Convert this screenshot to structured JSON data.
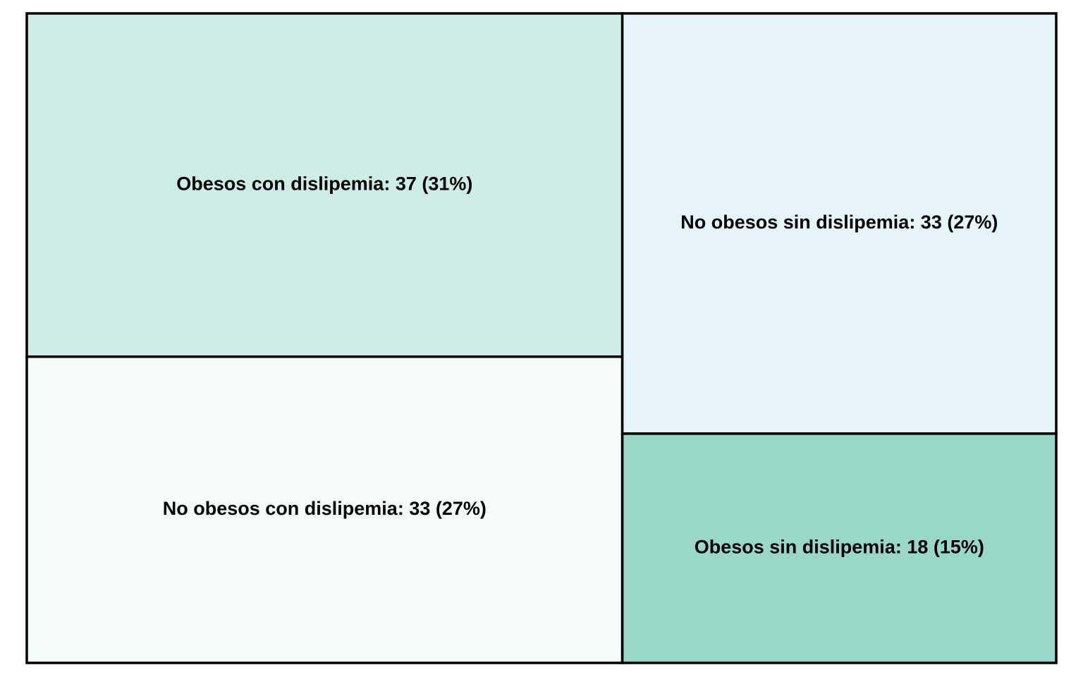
{
  "chart_data": {
    "type": "treemap",
    "cells": [
      {
        "name": "Obesos con dislipemia",
        "value": 37,
        "percent": 31,
        "label": "Obesos con dislipemia: 37 (31%)",
        "color": "#ccece5"
      },
      {
        "name": "No obesos con dislipemia",
        "value": 33,
        "percent": 27,
        "label": "No obesos con dislipemia: 33 (27%)",
        "color": "#f5fbfb"
      },
      {
        "name": "No obesos sin dislipemia",
        "value": 33,
        "percent": 27,
        "label": "No obesos sin dislipemia: 33 (27%)",
        "color": "#e5f4f9"
      },
      {
        "name": "Obesos sin dislipemia",
        "value": 18,
        "percent": 15,
        "label": "Obesos sin dislipemia: 18 (15%)",
        "color": "#99d8c9"
      }
    ],
    "border_color": "#000000"
  }
}
